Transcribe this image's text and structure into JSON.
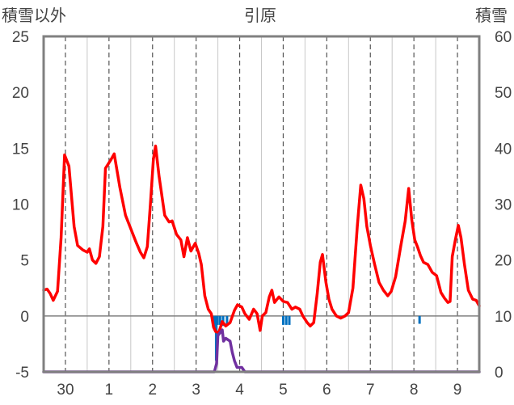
{
  "chart_data": {
    "type": "line",
    "title": "引原",
    "left_axis_label": "積雪以外",
    "right_axis_label": "積雪",
    "y_left": {
      "min": -5,
      "max": 25,
      "ticks": [
        "-5",
        "0",
        "5",
        "10",
        "15",
        "20",
        "25"
      ]
    },
    "y_right": {
      "min": 0,
      "max": 60,
      "ticks": [
        "0",
        "10",
        "20",
        "30",
        "40",
        "50",
        "60"
      ]
    },
    "x": {
      "min": 0,
      "max": 10,
      "ticks": [
        {
          "x": 0.5,
          "label": "30"
        },
        {
          "x": 1.5,
          "label": "1"
        },
        {
          "x": 2.5,
          "label": "2"
        },
        {
          "x": 3.5,
          "label": "3"
        },
        {
          "x": 4.5,
          "label": "4"
        },
        {
          "x": 5.5,
          "label": "5"
        },
        {
          "x": 6.5,
          "label": "6"
        },
        {
          "x": 7.5,
          "label": "7"
        },
        {
          "x": 8.5,
          "label": "8"
        },
        {
          "x": 9.5,
          "label": "9"
        }
      ]
    },
    "day_boundaries": [
      1,
      2,
      3,
      4,
      5,
      6,
      7,
      8,
      9,
      10
    ],
    "grid": "dashed vertical at day ticks",
    "colors": {
      "temperature": "#ff0000",
      "snow": "#7030a0",
      "precip": "#0070c0",
      "frame": "#808080"
    },
    "series": [
      {
        "axis": "left",
        "color": "#ff0000",
        "points": [
          [
            0.0,
            2.3
          ],
          [
            0.08,
            2.4
          ],
          [
            0.15,
            2.0
          ],
          [
            0.22,
            1.4
          ],
          [
            0.32,
            2.2
          ],
          [
            0.4,
            7.0
          ],
          [
            0.48,
            14.4
          ],
          [
            0.58,
            13.4
          ],
          [
            0.7,
            8.0
          ],
          [
            0.78,
            6.3
          ],
          [
            0.9,
            5.9
          ],
          [
            1.0,
            5.7
          ],
          [
            1.05,
            6.0
          ],
          [
            1.12,
            5.0
          ],
          [
            1.2,
            4.7
          ],
          [
            1.28,
            5.3
          ],
          [
            1.36,
            8.0
          ],
          [
            1.42,
            13.2
          ],
          [
            1.55,
            14.0
          ],
          [
            1.62,
            14.5
          ],
          [
            1.75,
            11.5
          ],
          [
            1.88,
            9.0
          ],
          [
            2.0,
            7.8
          ],
          [
            2.12,
            6.6
          ],
          [
            2.22,
            5.7
          ],
          [
            2.3,
            5.2
          ],
          [
            2.38,
            6.2
          ],
          [
            2.45,
            10.0
          ],
          [
            2.52,
            14.0
          ],
          [
            2.57,
            15.2
          ],
          [
            2.65,
            12.5
          ],
          [
            2.78,
            9.0
          ],
          [
            2.88,
            8.4
          ],
          [
            2.95,
            8.5
          ],
          [
            3.05,
            7.3
          ],
          [
            3.15,
            6.8
          ],
          [
            3.22,
            5.3
          ],
          [
            3.3,
            7.0
          ],
          [
            3.38,
            5.8
          ],
          [
            3.48,
            6.5
          ],
          [
            3.56,
            5.6
          ],
          [
            3.62,
            4.6
          ],
          [
            3.7,
            1.8
          ],
          [
            3.78,
            0.6
          ],
          [
            3.85,
            0.2
          ],
          [
            3.9,
            -1.0
          ],
          [
            3.95,
            -1.4
          ],
          [
            4.02,
            -1.5
          ],
          [
            4.1,
            -0.5
          ],
          [
            4.18,
            -0.9
          ],
          [
            4.28,
            -0.6
          ],
          [
            4.38,
            0.5
          ],
          [
            4.45,
            1.0
          ],
          [
            4.55,
            0.8
          ],
          [
            4.62,
            0.2
          ],
          [
            4.72,
            -0.3
          ],
          [
            4.82,
            0.6
          ],
          [
            4.9,
            0.2
          ],
          [
            4.97,
            -1.3
          ],
          [
            5.02,
            0.0
          ],
          [
            5.1,
            0.3
          ],
          [
            5.18,
            1.7
          ],
          [
            5.24,
            2.3
          ],
          [
            5.3,
            1.2
          ],
          [
            5.4,
            1.7
          ],
          [
            5.5,
            1.3
          ],
          [
            5.6,
            1.2
          ],
          [
            5.7,
            0.6
          ],
          [
            5.78,
            0.8
          ],
          [
            5.88,
            0.6
          ],
          [
            5.95,
            0.0
          ],
          [
            6.05,
            -0.6
          ],
          [
            6.12,
            -0.9
          ],
          [
            6.2,
            -0.6
          ],
          [
            6.28,
            2.0
          ],
          [
            6.35,
            4.8
          ],
          [
            6.4,
            5.5
          ],
          [
            6.48,
            3.0
          ],
          [
            6.55,
            1.5
          ],
          [
            6.62,
            0.6
          ],
          [
            6.72,
            0.0
          ],
          [
            6.82,
            -0.2
          ],
          [
            6.92,
            0.0
          ],
          [
            7.0,
            0.3
          ],
          [
            7.1,
            2.5
          ],
          [
            7.2,
            8.0
          ],
          [
            7.28,
            11.7
          ],
          [
            7.35,
            10.5
          ],
          [
            7.42,
            8.0
          ],
          [
            7.5,
            6.3
          ],
          [
            7.6,
            4.6
          ],
          [
            7.7,
            3.0
          ],
          [
            7.8,
            2.3
          ],
          [
            7.9,
            1.8
          ],
          [
            7.98,
            2.2
          ],
          [
            8.08,
            3.5
          ],
          [
            8.2,
            6.3
          ],
          [
            8.3,
            8.5
          ],
          [
            8.38,
            11.4
          ],
          [
            8.45,
            8.6
          ],
          [
            8.52,
            6.8
          ],
          [
            8.58,
            6.2
          ],
          [
            8.65,
            5.4
          ],
          [
            8.72,
            4.8
          ],
          [
            8.82,
            4.6
          ],
          [
            8.92,
            3.9
          ],
          [
            9.02,
            3.6
          ],
          [
            9.12,
            2.1
          ],
          [
            9.2,
            1.6
          ],
          [
            9.28,
            1.2
          ],
          [
            9.33,
            1.3
          ],
          [
            9.38,
            5.3
          ],
          [
            9.45,
            6.8
          ],
          [
            9.52,
            8.1
          ],
          [
            9.58,
            7.0
          ],
          [
            9.66,
            4.6
          ],
          [
            9.75,
            2.3
          ],
          [
            9.85,
            1.5
          ],
          [
            9.93,
            1.4
          ],
          [
            10.0,
            0.9
          ]
        ]
      },
      {
        "axis": "right",
        "color": "#7030a0",
        "points": [
          [
            0.0,
            0.0
          ],
          [
            3.92,
            0.0
          ],
          [
            3.97,
            1.5
          ],
          [
            4.0,
            6.5
          ],
          [
            4.05,
            7.0
          ],
          [
            4.1,
            7.5
          ],
          [
            4.13,
            5.5
          ],
          [
            4.18,
            6.0
          ],
          [
            4.28,
            5.5
          ],
          [
            4.33,
            3.5
          ],
          [
            4.38,
            2.0
          ],
          [
            4.44,
            0.8
          ],
          [
            4.55,
            0.8
          ],
          [
            4.62,
            0.0
          ],
          [
            10.0,
            0.0
          ]
        ]
      }
    ],
    "precip_bars": [
      [
        3.92,
        1.0
      ],
      [
        3.96,
        4.0
      ],
      [
        3.99,
        0.8
      ],
      [
        4.05,
        0.8
      ],
      [
        4.12,
        0.9
      ],
      [
        4.21,
        0.8
      ],
      [
        5.5,
        0.8
      ],
      [
        5.57,
        0.8
      ],
      [
        5.64,
        0.8
      ],
      [
        8.63,
        0.7
      ]
    ]
  }
}
